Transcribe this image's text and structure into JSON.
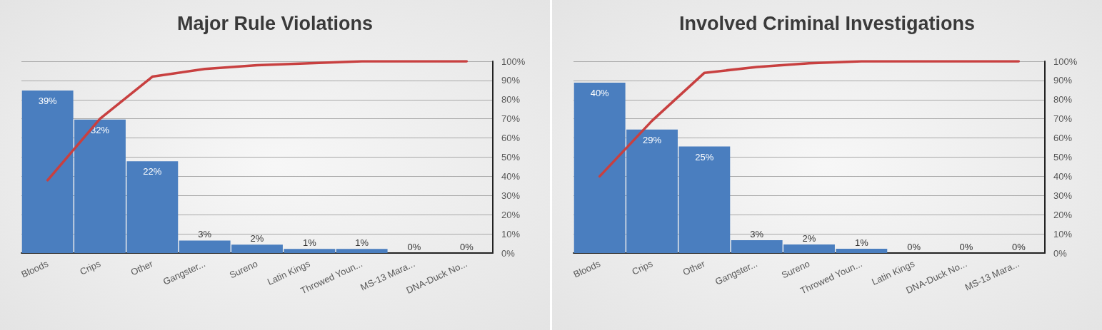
{
  "chart_data": [
    {
      "type": "bar",
      "title": "Major Rule Violations",
      "categories": [
        "Bloods",
        "Crips",
        "Other",
        "Gangster...",
        "Sureno",
        "Latin Kings",
        "Throwed Youn...",
        "MS-13 Mara...",
        "DNA-Duck No..."
      ],
      "series": [
        {
          "color": "#4a7ebf",
          "values": [
            39,
            32,
            22,
            3,
            2,
            1,
            1,
            0,
            0
          ],
          "value_labels": [
            "39%",
            "32%",
            "22%",
            "3%",
            "2%",
            "1%",
            "1%",
            "0%",
            "0%"
          ]
        },
        {
          "type": "line",
          "axis": "y2",
          "color": "#c84040",
          "values": [
            38,
            70,
            92,
            96,
            98,
            99,
            100,
            100,
            100
          ]
        }
      ],
      "ylim": [
        0,
        46
      ],
      "y2lim": [
        0,
        100
      ],
      "y2ticks": [
        {
          "value": 0,
          "label": "0%"
        },
        {
          "value": 10,
          "label": "10%"
        },
        {
          "value": 20,
          "label": "20%"
        },
        {
          "value": 30,
          "label": "30%"
        },
        {
          "value": 40,
          "label": "40%"
        },
        {
          "value": 50,
          "label": "50%"
        },
        {
          "value": 60,
          "label": "60%"
        },
        {
          "value": 70,
          "label": "70%"
        },
        {
          "value": 80,
          "label": "80%"
        },
        {
          "value": 90,
          "label": "90%"
        },
        {
          "value": 100,
          "label": "100%"
        }
      ],
      "grid": "y2",
      "marker": "none"
    },
    {
      "type": "bar",
      "title": "Involved Criminal Investigations",
      "categories": [
        "Bloods",
        "Crips",
        "Other",
        "Gangster...",
        "Sureno",
        "Throwed Youn...",
        "Latin Kings",
        "DNA-Duck No...",
        "MS-13 Mara..."
      ],
      "series": [
        {
          "color": "#4a7ebf",
          "values": [
            40,
            29,
            25,
            3,
            2,
            1,
            0,
            0,
            0
          ],
          "value_labels": [
            "40%",
            "29%",
            "25%",
            "3%",
            "2%",
            "1%",
            "0%",
            "0%",
            "0%"
          ]
        },
        {
          "type": "line",
          "axis": "y2",
          "color": "#c84040",
          "values": [
            40,
            69,
            94,
            97,
            99,
            100,
            100,
            100,
            100
          ]
        }
      ],
      "ylim": [
        0,
        45
      ],
      "y2lim": [
        0,
        100
      ],
      "y2ticks": [
        {
          "value": 0,
          "label": "0%"
        },
        {
          "value": 10,
          "label": "10%"
        },
        {
          "value": 20,
          "label": "20%"
        },
        {
          "value": 30,
          "label": "30%"
        },
        {
          "value": 40,
          "label": "40%"
        },
        {
          "value": 50,
          "label": "50%"
        },
        {
          "value": 60,
          "label": "60%"
        },
        {
          "value": 70,
          "label": "70%"
        },
        {
          "value": 80,
          "label": "80%"
        },
        {
          "value": 90,
          "label": "90%"
        },
        {
          "value": 100,
          "label": "100%"
        }
      ],
      "grid": "y2",
      "marker": "none"
    }
  ]
}
